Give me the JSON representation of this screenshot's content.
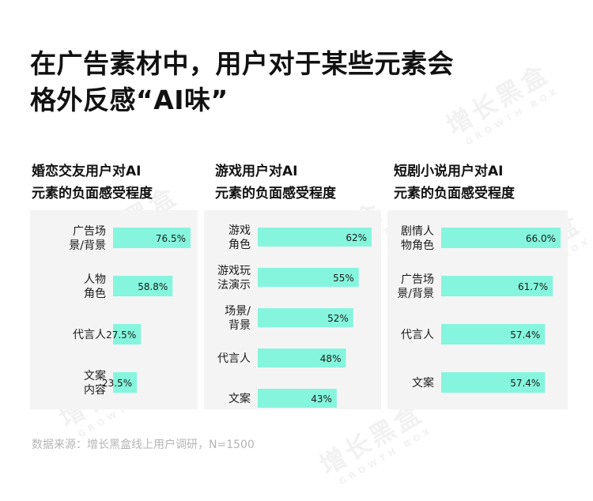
{
  "title": {
    "line1": "在广告素材中，用户对于某些元素会",
    "line2": "格外反感“AI味”"
  },
  "source": "数据来源：增长黑盒线上用户调研，N=1500",
  "watermark": {
    "brand": "增长黑盒",
    "sub": "GROWTH BOX"
  },
  "colors": {
    "bar": "#86f5dd",
    "panel_bg": "#f4f4f5",
    "text": "#1a1a1a"
  },
  "chart_data": [
    {
      "type": "bar",
      "orientation": "horizontal",
      "title_lines": [
        "婚恋交友用户对AI",
        "元素的负面感受程度"
      ],
      "categories": [
        [
          "广告场",
          "景/背景"
        ],
        [
          "人物",
          "角色"
        ],
        [
          "代言人"
        ],
        [
          "文案",
          "内容"
        ]
      ],
      "values": [
        76.5,
        58.8,
        27.5,
        23.5
      ],
      "value_labels": [
        "76.5%",
        "58.8%",
        "27.5%",
        "23.5%"
      ],
      "xlim": [
        0,
        76.5
      ]
    },
    {
      "type": "bar",
      "orientation": "horizontal",
      "title_lines": [
        "游戏用户对AI",
        "元素的负面感受程度"
      ],
      "categories": [
        [
          "游戏",
          "角色"
        ],
        [
          "游戏玩",
          "法演示"
        ],
        [
          "场景/",
          "背景"
        ],
        [
          "代言人"
        ],
        [
          "文案"
        ]
      ],
      "values": [
        62,
        55,
        52,
        48,
        43
      ],
      "value_labels": [
        "62%",
        "55%",
        "52%",
        "48%",
        "43%"
      ],
      "xlim": [
        0,
        62
      ]
    },
    {
      "type": "bar",
      "orientation": "horizontal",
      "title_lines": [
        "短剧小说用户对AI",
        "元素的负面感受程度"
      ],
      "categories": [
        [
          "剧情人",
          "物角色"
        ],
        [
          "广告场",
          "景/背景"
        ],
        [
          "代言人"
        ],
        [
          "文案"
        ]
      ],
      "values": [
        66.0,
        61.7,
        57.4,
        57.4
      ],
      "value_labels": [
        "66.0%",
        "61.7%",
        "57.4%",
        "57.4%"
      ],
      "xlim": [
        0,
        66
      ]
    }
  ]
}
